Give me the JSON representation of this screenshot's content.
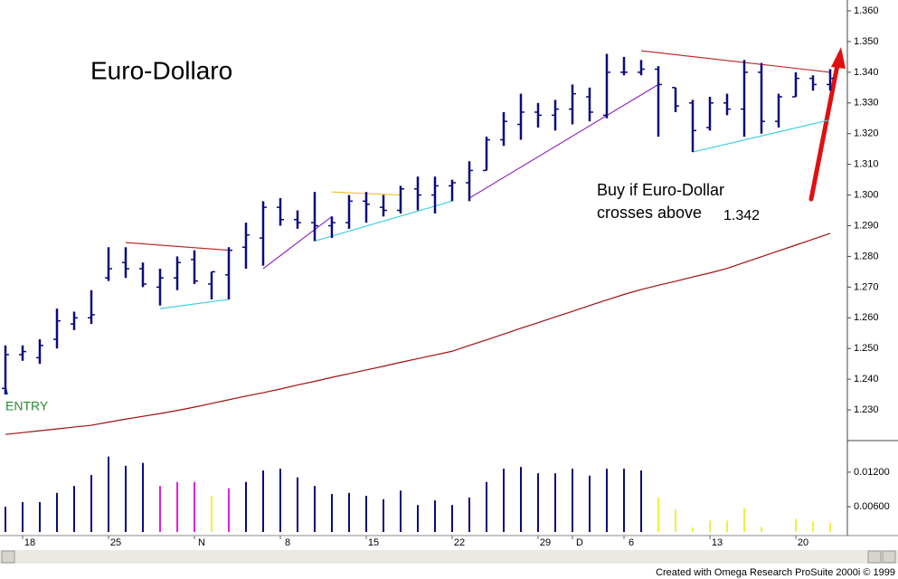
{
  "chart_data": {
    "type": "ohlc",
    "title": "Euro-Dollaro",
    "color": "#0a0a7a",
    "categories": [
      null,
      "18",
      null,
      null,
      null,
      null,
      "25",
      null,
      null,
      null,
      null,
      "N",
      null,
      null,
      null,
      null,
      "8",
      null,
      null,
      null,
      null,
      "15",
      null,
      null,
      null,
      null,
      "22",
      null,
      null,
      null,
      null,
      "29",
      null,
      "D",
      null,
      null,
      "6",
      null,
      null,
      null,
      null,
      "13",
      null,
      null,
      null,
      null,
      "20",
      null,
      null
    ],
    "open": [
      1.237,
      1.248,
      1.247,
      1.253,
      1.258,
      1.26,
      1.273,
      1.278,
      1.276,
      1.27,
      1.273,
      1.279,
      1.271,
      1.274,
      1.283,
      1.286,
      1.296,
      1.292,
      1.291,
      1.29,
      1.291,
      1.298,
      1.296,
      1.295,
      1.302,
      1.3,
      1.303,
      1.304,
      1.308,
      1.318,
      1.323,
      1.327,
      1.326,
      1.328,
      1.332,
      1.326,
      1.34,
      1.34,
      1.341,
      1.335,
      1.33,
      1.322,
      1.33,
      1.328,
      1.34,
      1.324,
      1.332,
      1.338,
      1.336
    ],
    "high": [
      1.251,
      1.251,
      1.253,
      1.263,
      1.262,
      1.269,
      1.283,
      1.283,
      1.278,
      1.276,
      1.28,
      1.282,
      1.275,
      1.283,
      1.291,
      1.298,
      1.299,
      1.295,
      1.301,
      1.293,
      1.3,
      1.301,
      1.3,
      1.303,
      1.306,
      1.306,
      1.305,
      1.311,
      1.319,
      1.327,
      1.333,
      1.33,
      1.331,
      1.336,
      1.335,
      1.346,
      1.345,
      1.344,
      1.342,
      1.335,
      1.331,
      1.332,
      1.333,
      1.344,
      1.343,
      1.333,
      1.34,
      1.339,
      1.341
    ],
    "low": [
      1.235,
      1.246,
      1.245,
      1.25,
      1.256,
      1.258,
      1.272,
      1.273,
      1.27,
      1.264,
      1.269,
      1.271,
      1.266,
      1.266,
      1.276,
      1.277,
      1.29,
      1.289,
      1.285,
      1.286,
      1.289,
      1.291,
      1.293,
      1.294,
      1.295,
      1.294,
      1.298,
      1.298,
      1.308,
      1.316,
      1.318,
      1.322,
      1.321,
      1.323,
      1.324,
      1.325,
      1.339,
      1.339,
      1.319,
      1.327,
      1.314,
      1.321,
      1.326,
      1.319,
      1.32,
      1.322,
      1.332,
      1.334,
      1.334
    ],
    "close": [
      1.248,
      1.249,
      1.251,
      1.259,
      1.26,
      1.261,
      1.276,
      1.276,
      1.271,
      1.273,
      1.278,
      1.272,
      1.275,
      1.282,
      1.287,
      1.296,
      1.292,
      1.291,
      1.29,
      1.291,
      1.298,
      1.297,
      1.295,
      1.302,
      1.3,
      1.303,
      1.304,
      1.308,
      1.318,
      1.324,
      1.327,
      1.326,
      1.328,
      1.333,
      1.327,
      1.34,
      1.34,
      1.341,
      1.336,
      1.329,
      1.321,
      1.33,
      1.328,
      1.34,
      1.324,
      1.332,
      1.338,
      1.336,
      1.338
    ],
    "ylim": [
      1.22,
      1.36
    ],
    "yticks": [
      {
        "value": 1.23,
        "label": "1.230"
      },
      {
        "value": 1.24,
        "label": "1.240"
      },
      {
        "value": 1.25,
        "label": "1.250"
      },
      {
        "value": 1.26,
        "label": "1.260"
      },
      {
        "value": 1.27,
        "label": "1.270"
      },
      {
        "value": 1.28,
        "label": "1.280"
      },
      {
        "value": 1.29,
        "label": "1.290"
      },
      {
        "value": 1.3,
        "label": "1.300"
      },
      {
        "value": 1.31,
        "label": "1.310"
      },
      {
        "value": 1.32,
        "label": "1.320"
      },
      {
        "value": 1.33,
        "label": "1.330"
      },
      {
        "value": 1.34,
        "label": "1.340"
      },
      {
        "value": 1.35,
        "label": "1.350"
      },
      {
        "value": 1.36,
        "label": "1.360"
      }
    ],
    "moving_average": {
      "color": "#a01010",
      "values": [
        1.222,
        1.2226,
        1.2232,
        1.2238,
        1.2244,
        1.225,
        1.226,
        1.227,
        1.2279,
        1.2288,
        1.2298,
        1.2309,
        1.2321,
        1.2333,
        1.2345,
        1.2356,
        1.2368,
        1.2381,
        1.2393,
        1.2406,
        1.2418,
        1.243,
        1.2442,
        1.2455,
        1.2467,
        1.2479,
        1.2491,
        1.251,
        1.2528,
        1.2547,
        1.2566,
        1.2584,
        1.2603,
        1.2621,
        1.264,
        1.2658,
        1.2676,
        1.2692,
        1.2706,
        1.2719,
        1.2733,
        1.2746,
        1.2761,
        1.278,
        1.2799,
        1.2818,
        1.2837,
        1.2856,
        1.2875
      ]
    },
    "trendlines": [
      {
        "color": "#c03030",
        "x": [
          7,
          13
        ],
        "y": [
          1.2845,
          1.282
        ]
      },
      {
        "color": "#40d0e0",
        "x": [
          9,
          13
        ],
        "y": [
          1.263,
          1.266
        ]
      },
      {
        "color": "#9030c0",
        "x": [
          15,
          19
        ],
        "y": [
          1.276,
          1.293
        ]
      },
      {
        "color": "#40d0e0",
        "x": [
          18,
          26
        ],
        "y": [
          1.285,
          1.298
        ]
      },
      {
        "color": "#f0c020",
        "x": [
          19,
          23
        ],
        "y": [
          1.301,
          1.3
        ]
      },
      {
        "color": "#9030c0",
        "x": [
          27,
          38
        ],
        "y": [
          1.299,
          1.336
        ]
      },
      {
        "color": "#c03030",
        "x": [
          37,
          48
        ],
        "y": [
          1.347,
          1.34
        ]
      },
      {
        "color": "#40d0e0",
        "x": [
          40,
          48
        ],
        "y": [
          1.314,
          1.3245
        ]
      }
    ],
    "volume": {
      "ylim": [
        0.001,
        0.017
      ],
      "yticks": [
        {
          "value": 0.006,
          "label": "0.00600"
        },
        {
          "value": 0.012,
          "label": "0.01200"
        }
      ],
      "values": [
        0.006,
        0.0068,
        0.0068,
        0.0084,
        0.0096,
        0.0115,
        0.0147,
        0.0131,
        0.0136,
        0.0096,
        0.0103,
        0.0103,
        0.0079,
        0.0092,
        0.0103,
        0.0123,
        0.0126,
        0.0111,
        0.0096,
        0.0082,
        0.0084,
        0.0079,
        0.0073,
        0.0088,
        0.0063,
        0.0071,
        0.0063,
        0.0076,
        0.0103,
        0.0126,
        0.0129,
        0.0118,
        0.0118,
        0.0126,
        0.0114,
        0.0126,
        0.0126,
        0.0123,
        0.0076,
        0.0055,
        0.0024,
        0.0036,
        0.0036,
        0.0057,
        0.0025,
        null,
        0.0039,
        0.0035,
        0.0032
      ],
      "colors": [
        "#0a0a7a",
        "#0a0a7a",
        "#0a0a7a",
        "#0a0a7a",
        "#0a0a7a",
        "#0a0a7a",
        "#0a0a7a",
        "#0a0a7a",
        "#0a0a7a",
        "#e020e0",
        "#e020e0",
        "#e020e0",
        "#f0f040",
        "#e020e0",
        "#0a0a7a",
        "#0a0a7a",
        "#0a0a7a",
        "#0a0a7a",
        "#0a0a7a",
        "#0a0a7a",
        "#0a0a7a",
        "#0a0a7a",
        "#0a0a7a",
        "#0a0a7a",
        "#0a0a7a",
        "#0a0a7a",
        "#0a0a7a",
        "#0a0a7a",
        "#0a0a7a",
        "#0a0a7a",
        "#0a0a7a",
        "#0a0a7a",
        "#0a0a7a",
        "#0a0a7a",
        "#0a0a7a",
        "#0a0a7a",
        "#0a0a7a",
        "#0a0a7a",
        "#f0f040",
        "#f0f040",
        "#f0f040",
        "#f0f040",
        "#f0f040",
        "#f0f040",
        "#f0f040",
        "#f0f040",
        "#f0f040",
        "#f0f040",
        "#f0f040"
      ]
    },
    "annotations": {
      "buy_line1": "Buy if Euro-Dollar",
      "buy_line2": "crosses above",
      "buy_level": "1.342",
      "entry": "ENTRY"
    }
  },
  "footer": "Created with Omega Research ProSuite 2000i © 1999"
}
